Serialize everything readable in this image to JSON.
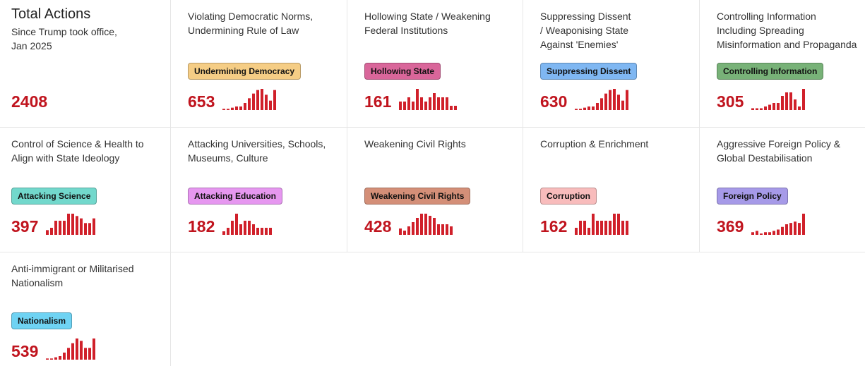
{
  "total": {
    "title": "Total Actions",
    "subtitle": "Since Trump took office,\nJan 2025",
    "count": "2408"
  },
  "colors": {
    "count": "#c0141e",
    "spark": "#d0202a"
  },
  "categories": [
    {
      "description": "Violating Democratic Norms,\nUndermining Rule of Law",
      "badge": "Undermining Democracy",
      "badge_color": "#f5cd85",
      "count": "653",
      "trend": [
        1,
        1,
        2,
        3,
        3,
        6,
        10,
        14,
        17,
        18,
        13,
        8,
        17
      ]
    },
    {
      "description": "Hollowing State / Weakening\nFederal Institutions",
      "badge": "Hollowing State",
      "badge_color": "#d9669a",
      "count": "161",
      "trend": [
        1,
        1,
        1.5,
        1,
        2.5,
        1.5,
        1,
        1.5,
        2,
        1.5,
        1.5,
        1.5,
        0.5,
        0.5
      ]
    },
    {
      "description": "Suppressing Dissent\n/ Weaponising State\nAgainst 'Enemies'",
      "badge": "Suppressing Dissent",
      "badge_color": "#7fb7f2",
      "count": "630",
      "trend": [
        1,
        1,
        2,
        3,
        3,
        6,
        10,
        14,
        17,
        18,
        13,
        8,
        17
      ]
    },
    {
      "description": "Controlling Information\nIncluding Spreading\nMisinformation and Propaganda",
      "badge": "Controlling Information",
      "badge_color": "#78b278",
      "count": "305",
      "trend": [
        0.5,
        0.5,
        0.5,
        1,
        1.5,
        2,
        2,
        4,
        5,
        5,
        3,
        1,
        6
      ]
    },
    {
      "description": "Control of Science & Health to\nAlign with State Ideology",
      "badge": "Attacking Science",
      "badge_color": "#72d8cc",
      "count": "397",
      "trend": [
        1,
        1.5,
        3,
        3,
        3,
        4.5,
        4.5,
        4,
        3.5,
        2.5,
        2.5,
        3.5
      ]
    },
    {
      "description": "Attacking Universities, Schools,\nMuseums, Culture",
      "badge": "Attacking Education",
      "badge_color": "#e697f0",
      "count": "182",
      "trend": [
        0.5,
        1,
        2,
        3,
        1.5,
        2,
        2,
        1.5,
        1,
        1,
        1,
        1
      ]
    },
    {
      "description": "Weakening Civil Rights",
      "badge": "Weakening Civil Rights",
      "badge_color": "#d48f78",
      "count": "428",
      "trend": [
        1.5,
        1,
        2,
        3,
        4,
        5,
        5,
        4.5,
        4,
        2.5,
        2.5,
        2.5,
        2
      ]
    },
    {
      "description": "Corruption & Enrichment",
      "badge": "Corruption",
      "badge_color": "#f8bcbc",
      "count": "162",
      "trend": [
        0.5,
        1,
        1,
        0.5,
        1.5,
        1,
        1,
        1,
        1,
        1.5,
        1.5,
        1,
        1
      ]
    },
    {
      "description": "Aggressive Foreign Policy &\nGlobal Destabilisation",
      "badge": "Foreign Policy",
      "badge_color": "#a69ae8",
      "count": "369",
      "trend": [
        1,
        1.5,
        0.5,
        1,
        1,
        1.5,
        2,
        3,
        4,
        4.5,
        5,
        4.5,
        8
      ]
    },
    {
      "description": "Anti-immigrant or Militarised\nNationalism",
      "badge": "Nationalism",
      "badge_color": "#6fd3f3",
      "count": "539",
      "trend": [
        0.5,
        0.5,
        1,
        1.5,
        3,
        5,
        7,
        9,
        8,
        5,
        5,
        9
      ]
    }
  ]
}
